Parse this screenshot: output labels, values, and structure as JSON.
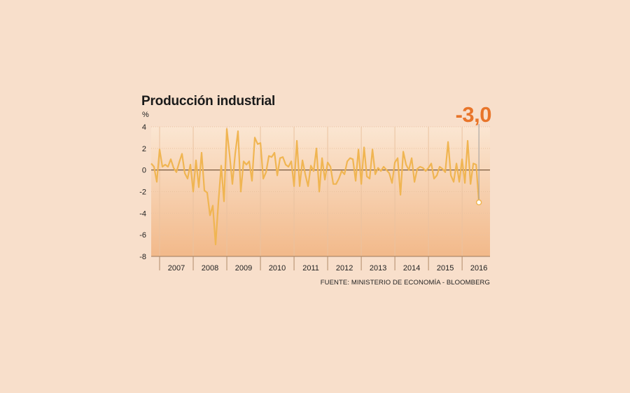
{
  "chart_data": {
    "type": "line",
    "title": "Producción industrial",
    "ylabel": "%",
    "highlight_value": "-3,0",
    "source": "FUENTE: MINISTERIO DE ECONOMÍA - BLOOMBERG",
    "ylim": [
      -8,
      4
    ],
    "yticks": [
      4,
      2,
      0,
      -2,
      -4,
      -6,
      -8
    ],
    "ytick_labels": [
      "4",
      "2",
      "0",
      "-2",
      "-4",
      "-6",
      "-8"
    ],
    "xlim": [
      2006.75,
      2016.83
    ],
    "year_labels": [
      "2007",
      "2008",
      "2009",
      "2010",
      "2011",
      "2012",
      "2013",
      "2014",
      "2015",
      "2016"
    ],
    "grid": true,
    "colors": {
      "line": "#f0b552",
      "area_top": "#fbe6d2",
      "area_bottom": "#f2b98a",
      "highlight": "#e8752a",
      "zero_line": "#6b4a2f",
      "grid": "#eac2a0"
    },
    "series": [
      {
        "name": "Producción industrial",
        "start": "2006-10",
        "values": [
          0.6,
          0.3,
          -1.1,
          1.9,
          0.3,
          0.5,
          0.3,
          1.0,
          0.2,
          -0.2,
          0.7,
          1.5,
          -0.3,
          -0.8,
          0.5,
          -2.0,
          0.9,
          -1.6,
          1.6,
          -1.9,
          -2.1,
          -4.2,
          -3.3,
          -6.9,
          -3.0,
          0.4,
          -2.9,
          3.8,
          1.4,
          -1.3,
          1.5,
          3.6,
          -2.0,
          0.8,
          0.5,
          0.8,
          -1.0,
          3.0,
          2.4,
          2.5,
          -0.8,
          -0.2,
          1.3,
          1.2,
          1.6,
          -0.5,
          1.1,
          1.2,
          0.5,
          0.3,
          0.8,
          -1.5,
          2.7,
          -1.5,
          0.9,
          -0.4,
          -1.5,
          0.4,
          -0.1,
          2.0,
          -2.0,
          1.1,
          -0.9,
          0.7,
          0.3,
          -1.3,
          -1.3,
          -0.8,
          -0.1,
          -0.4,
          0.8,
          1.1,
          1.0,
          -1.0,
          1.9,
          -1.3,
          2.1,
          -0.6,
          -0.8,
          1.9,
          -0.4,
          0.2,
          -0.1,
          0.3,
          0.0,
          -0.3,
          -1.2,
          0.7,
          1.1,
          -2.3,
          1.7,
          0.5,
          0.0,
          1.1,
          -1.1,
          0.1,
          0.3,
          0.2,
          -0.1,
          0.2,
          0.6,
          -0.8,
          -0.5,
          0.3,
          0.1,
          -0.2,
          2.6,
          -0.5,
          -1.1,
          0.6,
          -1.1,
          1.0,
          -1.2,
          2.7,
          -1.3,
          0.6,
          0.5,
          -3.0
        ]
      }
    ]
  }
}
